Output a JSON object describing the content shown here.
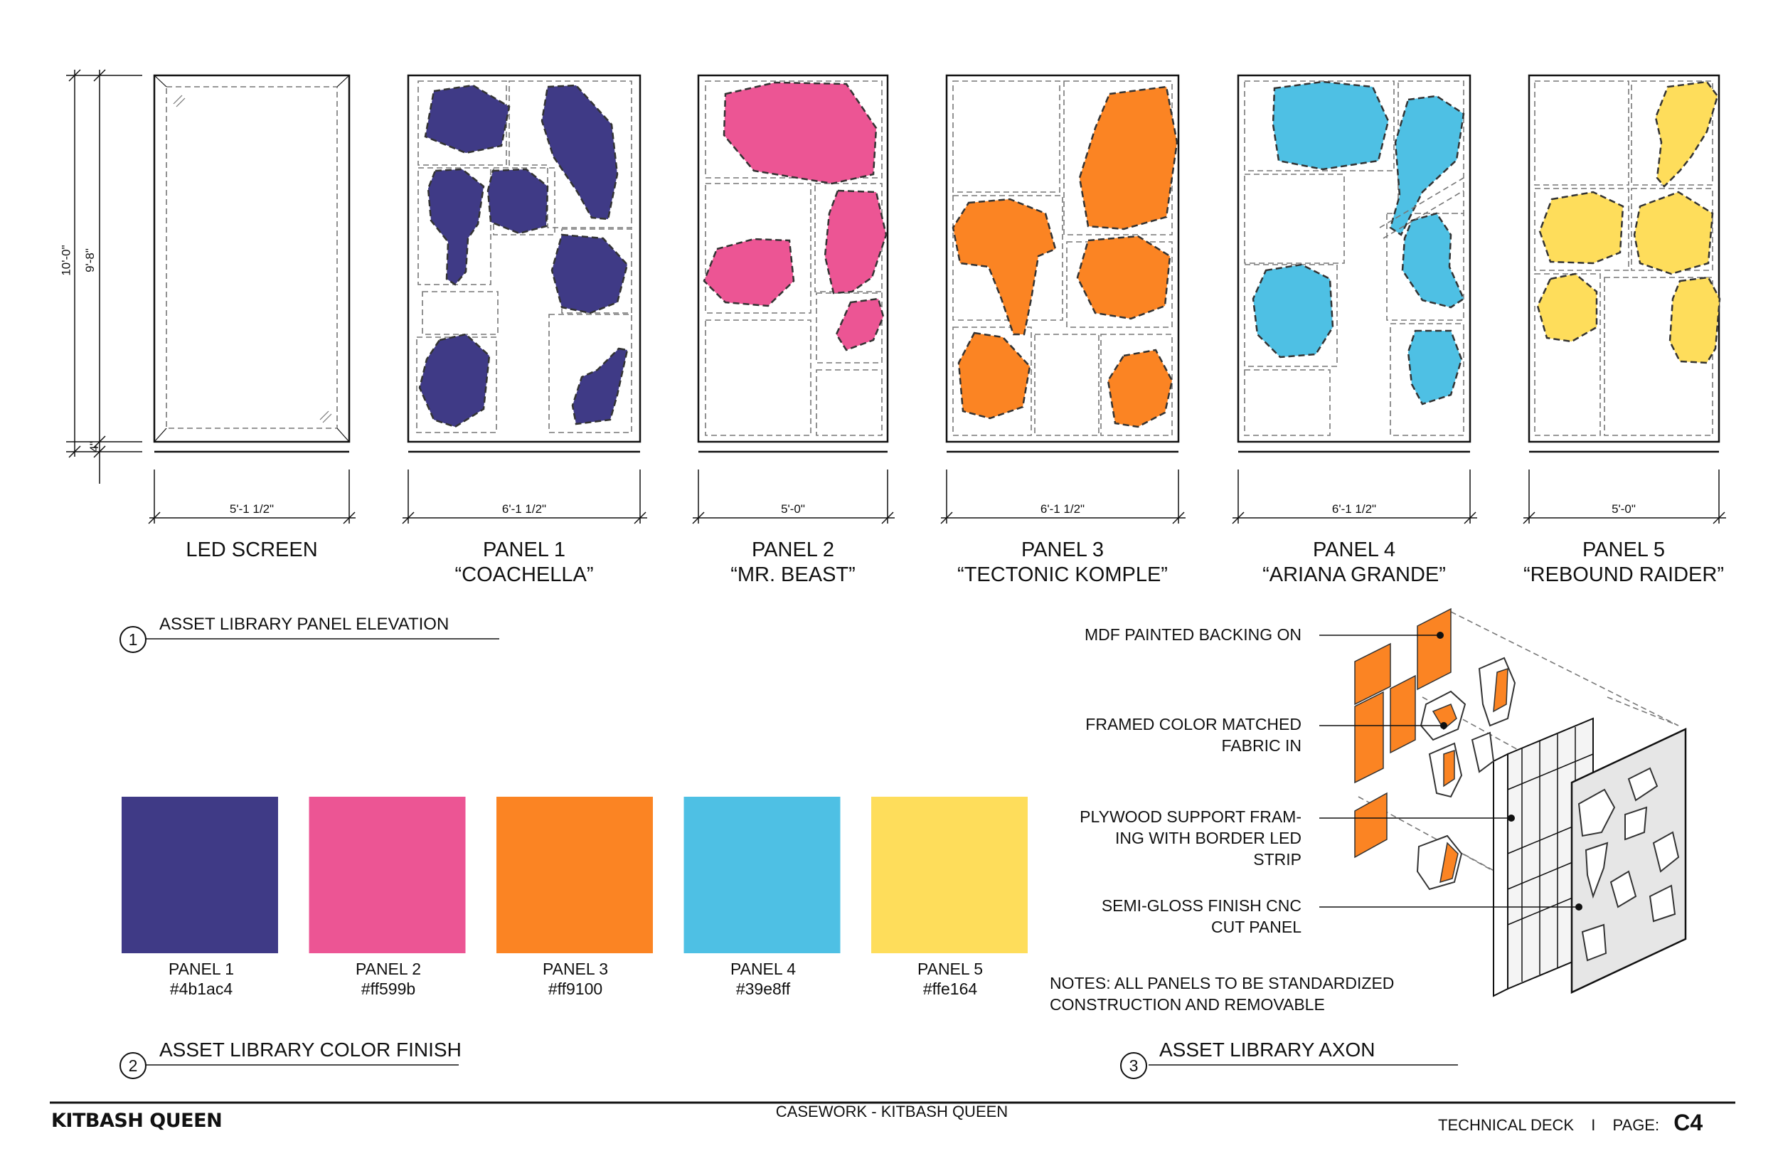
{
  "panels": [
    {
      "name": "LED SCREEN",
      "subtitle": "",
      "width": "5'-1 1/2\""
    },
    {
      "name": "PANEL 1",
      "subtitle": "“COACHELLA”",
      "width": "6'-1 1/2\""
    },
    {
      "name": "PANEL 2",
      "subtitle": "“MR. BEAST”",
      "width": "5'-0\""
    },
    {
      "name": "PANEL 3",
      "subtitle": "“TECTONIC KOMPLE”",
      "width": "6'-1 1/2\""
    },
    {
      "name": "PANEL 4",
      "subtitle": "“ARIANA GRANDE”",
      "width": "6'-1 1/2\""
    },
    {
      "name": "PANEL 5",
      "subtitle": "“REBOUND RAIDER”",
      "width": "5'-0\""
    }
  ],
  "heights": {
    "overall": "10'-0\"",
    "panel": "9'-8\"",
    "base": "4\""
  },
  "sections": [
    {
      "number": "1",
      "title": "ASSET LIBRARY PANEL ELEVATION"
    },
    {
      "number": "2",
      "title": "ASSET LIBRARY COLOR FINISH"
    },
    {
      "number": "3",
      "title": "ASSET LIBRARY AXON"
    }
  ],
  "swatches": [
    {
      "label": "PANEL 1",
      "hex": "#4b1ac4",
      "display": "#3f3a86"
    },
    {
      "label": "PANEL 2",
      "hex": "#ff599b",
      "display": "#ec5594"
    },
    {
      "label": "PANEL 3",
      "hex": "#ff9100",
      "display": "#fb8423"
    },
    {
      "label": "PANEL 4",
      "hex": "#39e8ff",
      "display": "#4ec0e4"
    },
    {
      "label": "PANEL 5",
      "hex": "#ffe164",
      "display": "#fedd5b"
    }
  ],
  "callouts": [
    "MDF PAINTED BACKING ON",
    "FRAMED COLOR MATCHED\nFABRIC IN",
    "PLYWOOD SUPPORT FRAM-\nING WITH BORDER LED\nSTRIP",
    "SEMI-GLOSS FINISH CNC\nCUT PANEL"
  ],
  "notes": "NOTES: ALL PANELS TO BE STANDARDIZED\nCONSTRUCTION AND REMOVABLE",
  "footer": {
    "brand": "KITBASH QUEEN",
    "center": "CASEWORK - KITBASH QUEEN",
    "deck": "TECHNICAL DECK",
    "separator": "I",
    "page_label": "PAGE:",
    "page": "C4"
  }
}
